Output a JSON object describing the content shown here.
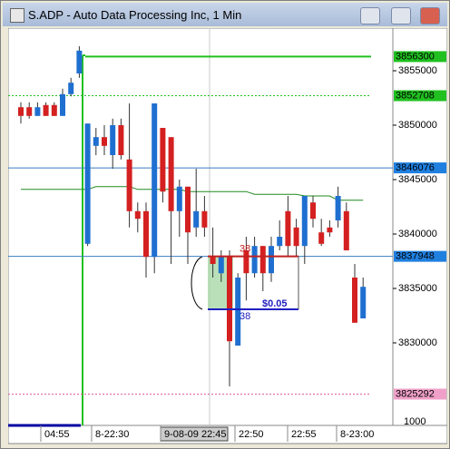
{
  "window_title": "S.ADP - Auto Data Processing Inc, 1 Min",
  "chart_data": {
    "type": "candlestick",
    "ylim": [
      3822250,
      3859750
    ],
    "yticks": [
      3830000,
      3835000,
      3840000,
      3845000,
      3850000,
      3855000
    ],
    "x_labels": [
      "04:55",
      "8-22:30",
      "9-08-09 22:45",
      "22:50",
      "22:55",
      "8-23:00"
    ],
    "volume_scale": "1000",
    "up_color": "#1f6fd0",
    "down_color": "#d42020",
    "open": [
      3851650,
      3851650,
      3850850,
      3851850,
      3851850,
      3850850,
      3852850,
      3854750,
      3839100,
      3848100,
      3848900,
      3847250,
      3850000,
      3846850,
      3842100,
      3842100,
      3837900,
      3849750,
      3848900,
      3842100,
      3844350,
      3840600,
      3842100,
      3837900,
      3836400,
      3837900,
      3829750,
      3838500,
      3836400,
      3838900,
      3836400,
      3838900,
      3842100,
      3840600,
      3838900,
      3842900,
      3840150,
      3840600,
      3841250,
      3842100,
      3836000,
      3832250
    ],
    "high": [
      3852100,
      3852100,
      3852100,
      3852100,
      3852100,
      3853350,
      3854350,
      3857250,
      3850150,
      3849750,
      3850000,
      3850600,
      3850600,
      3852000,
      3842900,
      3842900,
      3852000,
      3849750,
      3848900,
      3845000,
      3844350,
      3846000,
      3843500,
      3840600,
      3838500,
      3838500,
      3836400,
      3839750,
      3839750,
      3838900,
      3839750,
      3841250,
      3843500,
      3841400,
      3843500,
      3843500,
      3841400,
      3841250,
      3844350,
      3842900,
      3837250,
      3836000
    ],
    "low": [
      3850150,
      3850600,
      3850850,
      3850850,
      3850850,
      3850850,
      3852650,
      3854350,
      3838900,
      3847250,
      3847250,
      3846000,
      3846850,
      3840600,
      3840150,
      3836000,
      3836400,
      3842900,
      3837250,
      3839750,
      3837250,
      3839750,
      3839750,
      3836000,
      3835600,
      3826000,
      3829750,
      3833900,
      3836000,
      3834750,
      3835600,
      3838500,
      3837900,
      3837900,
      3837250,
      3840600,
      3838900,
      3839750,
      3840600,
      3838500,
      3831850,
      3832250
    ],
    "close": [
      3850850,
      3850850,
      3851650,
      3850850,
      3850850,
      3852850,
      3853900,
      3856850,
      3850150,
      3848900,
      3848100,
      3850000,
      3847250,
      3842100,
      3841400,
      3837900,
      3852000,
      3843900,
      3842100,
      3844350,
      3840150,
      3842100,
      3840600,
      3837250,
      3837900,
      3830150,
      3836000,
      3836400,
      3838900,
      3836400,
      3838900,
      3839750,
      3838900,
      3838900,
      3843500,
      3841400,
      3839100,
      3840150,
      3843500,
      3838500,
      3831850,
      3835150
    ],
    "moving_average": {
      "color": "#208a20",
      "values": [
        3844100,
        3844100,
        3844100,
        3844100,
        3844100,
        3844100,
        3844100,
        3844100,
        3844100,
        3844350,
        3844350,
        3844350,
        3844350,
        3844350,
        3844100,
        3844100,
        3844100,
        3844100,
        3844100,
        3844100,
        3843900,
        3843900,
        3843900,
        3843900,
        3843900,
        3843900,
        3843900,
        3843900,
        3843650,
        3843650,
        3843650,
        3843650,
        3843650,
        3843650,
        3843500,
        3843500,
        3843500,
        3843500,
        3843100,
        3843100,
        3843100,
        3843100
      ]
    },
    "levels": [
      {
        "value": 3856300,
        "label": "3856300",
        "color": "#20c020",
        "style": "solid",
        "tag_color": "#20c020"
      },
      {
        "value": 3852708,
        "label": "3852708",
        "color": "#20c020",
        "style": "dashed",
        "tag_color": "#20c020"
      },
      {
        "value": 3846076,
        "label": "3846076",
        "color": "#3a7cc0",
        "style": "solid",
        "tag_color": "#2080e0"
      },
      {
        "value": 3837948,
        "label": "3837948",
        "color": "#3a7cc0",
        "style": "solid",
        "tag_color": "#2080e0"
      },
      {
        "value": 3825292,
        "label": "3825292",
        "color": "#e060a0",
        "style": "dashed",
        "tag_color": "#f0a0c8"
      }
    ],
    "annotations": [
      "38",
      "38",
      "$0.05"
    ]
  }
}
